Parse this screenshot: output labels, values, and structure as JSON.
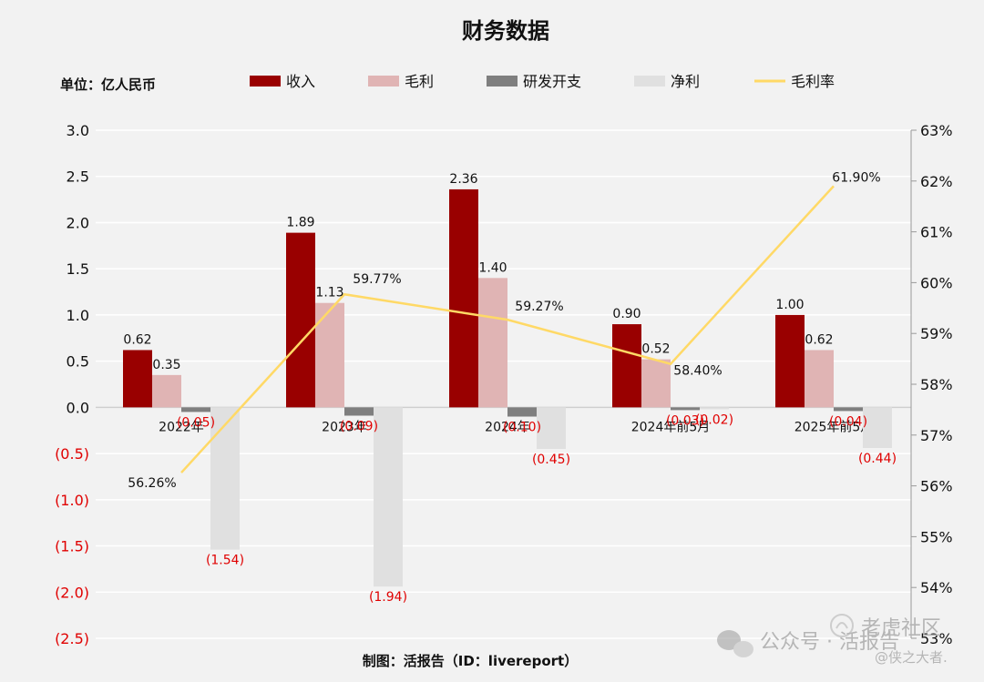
{
  "title": "财务数据",
  "unit_label": "单位：亿人民币",
  "footer": "制图：活报告（ID：livereport）",
  "watermark": {
    "wechat_text": "公众号 · 活报告",
    "community": "老虎社区",
    "author": "@侠之大者."
  },
  "chart_data": {
    "type": "bar",
    "categories": [
      "2022年",
      "2023年",
      "2024年",
      "2024年前5月",
      "2025年前5月"
    ],
    "series": [
      {
        "name": "收入",
        "color": "#990000",
        "values": [
          0.62,
          1.89,
          2.36,
          0.9,
          1.0
        ],
        "labels": [
          "0.62",
          "1.89",
          "2.36",
          "0.90",
          "1.00"
        ]
      },
      {
        "name": "毛利",
        "color": "#e0b4b4",
        "values": [
          0.35,
          1.13,
          1.4,
          0.52,
          0.62
        ],
        "labels": [
          "0.35",
          "1.13",
          "1.40",
          "0.52",
          "0.62"
        ]
      },
      {
        "name": "研发开支",
        "color": "#7f7f7f",
        "values": [
          -0.05,
          -0.09,
          -0.1,
          -0.03,
          -0.04
        ],
        "labels": [
          "(0.05)",
          "(0.09)",
          "(0.10)",
          "(0.03)",
          "(0.04)"
        ]
      },
      {
        "name": "净利",
        "color": "#e0e0e0",
        "values": [
          -1.54,
          -1.94,
          -0.45,
          -0.02,
          -0.44
        ],
        "labels": [
          "(1.54)",
          "(1.94)",
          "(0.45)",
          "(0.02)",
          "(0.44)"
        ]
      }
    ],
    "line_series": {
      "name": "毛利率",
      "color": "#ffd966",
      "axis": "right",
      "values": [
        56.26,
        59.77,
        59.27,
        58.4,
        61.9
      ],
      "labels": [
        "56.26%",
        "59.77%",
        "59.27%",
        "58.40%",
        "61.90%"
      ]
    },
    "ylim": [
      -2.5,
      3.0
    ],
    "yticks": [
      "3.0",
      "2.5",
      "2.0",
      "1.5",
      "1.0",
      "0.5",
      "0.0",
      "(0.5)",
      "(1.0)",
      "(1.5)",
      "(2.0)",
      "(2.5)"
    ],
    "y2lim": [
      53,
      63
    ],
    "y2ticks": [
      "63%",
      "62%",
      "61%",
      "60%",
      "59%",
      "58%",
      "57%",
      "56%",
      "55%",
      "54%",
      "53%"
    ],
    "negative_color": "#e00000",
    "grid": true,
    "legend_position": "top"
  }
}
